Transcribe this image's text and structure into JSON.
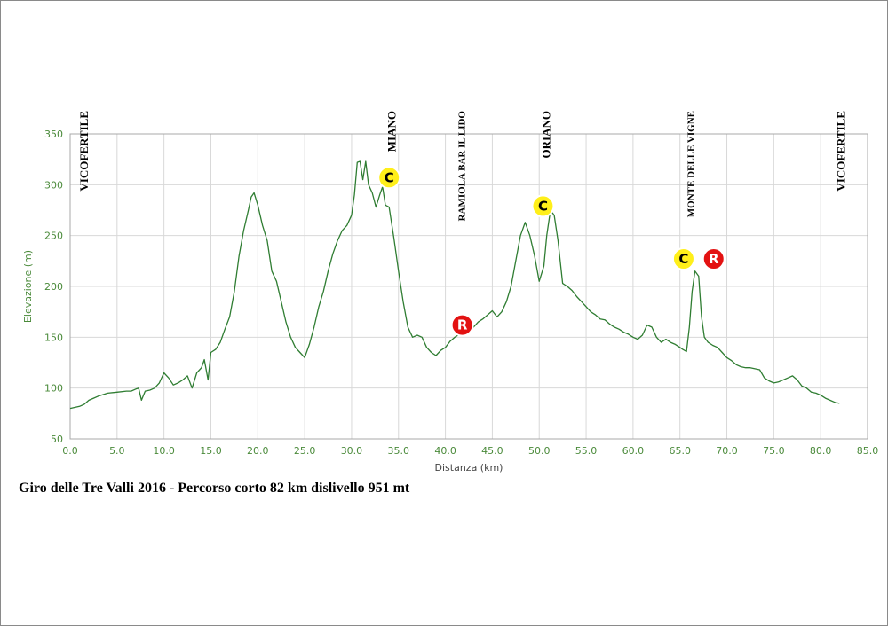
{
  "colors": {
    "line": "#2f7d32",
    "tick_text": "#4a8a3a",
    "climb_marker": "#ffef1a",
    "refresh_marker": "#e31212"
  },
  "caption": "Giro delle Tre Valli 2016 - Percorso corto 82 km dislivello 951 mt",
  "chart_data": {
    "type": "line",
    "xlabel": "Distanza (km)",
    "ylabel": "Elevazione (m)",
    "xlim": [
      0,
      85
    ],
    "ylim": [
      50,
      350
    ],
    "x_ticks": [
      "0.0",
      "5.0",
      "10.0",
      "15.0",
      "20.0",
      "25.0",
      "30.0",
      "35.0",
      "40.0",
      "45.0",
      "50.0",
      "55.0",
      "60.0",
      "65.0",
      "70.0",
      "75.0",
      "80.0",
      "85.0"
    ],
    "y_ticks": [
      "50",
      "100",
      "150",
      "200",
      "250",
      "300",
      "350"
    ],
    "grid": true,
    "series": [
      {
        "x": [
          0,
          1,
          1.5,
          2,
          2.5,
          3,
          4,
          5,
          6,
          6.5,
          7,
          7.3,
          7.6,
          8,
          8.5,
          9,
          9.5,
          10,
          10.5,
          11,
          11.5,
          12,
          12.5,
          13,
          13.5,
          14,
          14.3,
          14.7,
          15,
          15.5,
          16,
          16.5,
          17,
          17.5,
          18,
          18.5,
          19,
          19.3,
          19.6,
          20,
          20.5,
          21,
          21.5,
          22,
          22.5,
          23,
          23.5,
          24,
          24.5,
          25,
          25.5,
          26,
          26.5,
          27,
          27.5,
          28,
          28.5,
          29,
          29.5,
          30,
          30.3,
          30.6,
          30.9,
          31.2,
          31.5,
          31.8,
          32.2,
          32.6,
          33,
          33.3,
          33.6,
          34,
          34.5,
          35,
          35.5,
          36,
          36.5,
          37,
          37.5,
          38,
          38.5,
          39,
          39.5,
          40,
          40.5,
          41,
          41.5,
          42,
          42.5,
          43,
          43.5,
          44,
          44.5,
          45,
          45.5,
          46,
          46.5,
          47,
          47.5,
          48,
          48.5,
          49,
          49.5,
          50,
          50.5,
          50.8,
          51.2,
          51.6,
          52,
          52.5,
          53,
          53.5,
          54,
          54.5,
          55,
          55.5,
          56,
          56.5,
          57,
          57.5,
          58,
          58.5,
          59,
          59.5,
          60,
          60.5,
          61,
          61.5,
          62,
          62.5,
          63,
          63.5,
          64,
          64.5,
          65,
          65.3,
          65.7,
          66,
          66.3,
          66.6,
          67,
          67.3,
          67.6,
          68,
          68.5,
          69,
          69.5,
          70,
          70.5,
          71,
          71.5,
          72,
          72.5,
          73,
          73.5,
          74,
          74.5,
          75,
          75.5,
          76,
          76.5,
          77,
          77.5,
          78,
          78.5,
          79,
          79.5,
          80,
          80.5,
          81,
          81.5,
          82
        ],
        "y": [
          80,
          82,
          84,
          88,
          90,
          92,
          95,
          96,
          97,
          97,
          99,
          100,
          88,
          97,
          98,
          100,
          105,
          115,
          110,
          103,
          105,
          108,
          112,
          100,
          115,
          120,
          128,
          108,
          135,
          138,
          145,
          158,
          170,
          195,
          230,
          255,
          275,
          288,
          292,
          280,
          260,
          245,
          215,
          205,
          185,
          165,
          150,
          140,
          135,
          130,
          143,
          160,
          180,
          195,
          215,
          232,
          245,
          255,
          260,
          270,
          290,
          322,
          323,
          305,
          323,
          300,
          292,
          278,
          290,
          298,
          280,
          278,
          248,
          215,
          185,
          160,
          150,
          152,
          150,
          140,
          135,
          132,
          137,
          140,
          146,
          150,
          153,
          157,
          162,
          160,
          165,
          168,
          172,
          176,
          170,
          175,
          185,
          200,
          225,
          250,
          263,
          250,
          230,
          205,
          220,
          250,
          275,
          270,
          245,
          203,
          200,
          196,
          190,
          185,
          180,
          175,
          172,
          168,
          167,
          163,
          160,
          158,
          155,
          153,
          150,
          148,
          152,
          162,
          160,
          150,
          145,
          148,
          145,
          143,
          140,
          138,
          136,
          160,
          195,
          215,
          210,
          170,
          150,
          145,
          142,
          140,
          135,
          130,
          127,
          123,
          121,
          120,
          120,
          119,
          118,
          110,
          107,
          105,
          106,
          108,
          110,
          112,
          108,
          102,
          100,
          96,
          95,
          93,
          90,
          88,
          86,
          85
        ]
      }
    ],
    "place_labels": [
      {
        "name": "VICOFERTILE",
        "km": 1.5
      },
      {
        "name": "MIANO",
        "km": 34.3
      },
      {
        "name": "RAMIOLA BAR IL LIDO",
        "km": 41.7
      },
      {
        "name": "ORIANO",
        "km": 50.8
      },
      {
        "name": "MONTE DELLE VIGNE",
        "km": 66.1
      },
      {
        "name": "VICOFERTILE",
        "km": 82.2
      }
    ],
    "markers": [
      {
        "letter": "C",
        "kind": "climb",
        "km": 34.0,
        "elev": 307
      },
      {
        "letter": "R",
        "kind": "refresh",
        "km": 41.8,
        "elev": 162
      },
      {
        "letter": "C",
        "kind": "climb",
        "km": 50.4,
        "elev": 279
      },
      {
        "letter": "C",
        "kind": "climb",
        "km": 65.4,
        "elev": 227
      },
      {
        "letter": "R",
        "kind": "refresh",
        "km": 68.6,
        "elev": 227
      }
    ]
  }
}
